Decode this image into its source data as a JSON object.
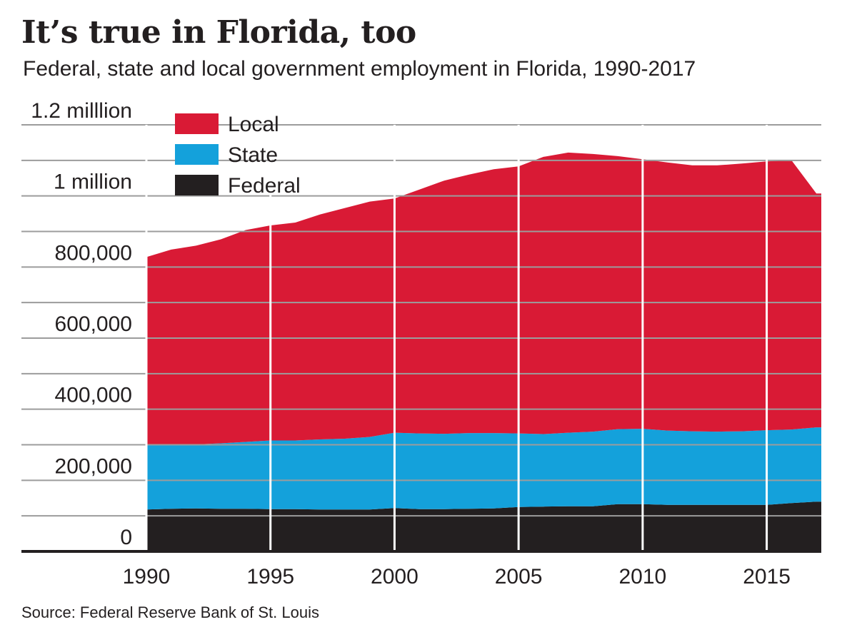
{
  "title": "It’s true in Florida, too",
  "subtitle": "Federal, state and local government employment in Florida, 1990-2017",
  "source": "Source: Federal Reserve Bank of St. Louis",
  "chart_data": {
    "type": "area",
    "stacked": true,
    "x": [
      1990,
      1991,
      1992,
      1993,
      1994,
      1995,
      1996,
      1997,
      1998,
      1999,
      2000,
      2001,
      2002,
      2003,
      2004,
      2005,
      2006,
      2007,
      2008,
      2009,
      2010,
      2011,
      2012,
      2013,
      2014,
      2015,
      2016,
      2017
    ],
    "series": [
      {
        "name": "Federal",
        "color": "#231f20",
        "values": [
          118000,
          120000,
          121000,
          120000,
          120000,
          119000,
          119000,
          118000,
          118000,
          118000,
          122000,
          119000,
          119000,
          120000,
          121000,
          125000,
          126000,
          127000,
          127000,
          133000,
          133000,
          131000,
          131000,
          131000,
          131000,
          131000,
          136000,
          140000
        ]
      },
      {
        "name": "State",
        "color": "#14a1db",
        "values": [
          182000,
          179000,
          180000,
          184000,
          188000,
          193000,
          193000,
          197000,
          199000,
          204000,
          212000,
          213000,
          212000,
          213000,
          212000,
          207000,
          204000,
          207000,
          210000,
          211000,
          212000,
          209000,
          207000,
          206000,
          207000,
          210000,
          207000,
          209000
        ]
      },
      {
        "name": "Local",
        "color": "#d91a35",
        "values": [
          528000,
          550000,
          559000,
          574000,
          596000,
          605000,
          613000,
          633000,
          649000,
          662000,
          659000,
          686000,
          712000,
          727000,
          742000,
          751000,
          780000,
          788000,
          781000,
          768000,
          758000,
          754000,
          748000,
          749000,
          753000,
          756000,
          757000,
          658000
        ]
      }
    ],
    "legend_order": [
      "Local",
      "State",
      "Federal"
    ],
    "legend_placement": "top-left",
    "y_ticks": [
      {
        "value": 0,
        "label": "0"
      },
      {
        "value": 200000,
        "label": "200,000"
      },
      {
        "value": 400000,
        "label": "400,000"
      },
      {
        "value": 600000,
        "label": "600,000"
      },
      {
        "value": 800000,
        "label": "800,000"
      },
      {
        "value": 1000000,
        "label": "1 million"
      },
      {
        "value": 1200000,
        "label": "1.2 milllion"
      }
    ],
    "x_ticks": [
      1990,
      1995,
      2000,
      2005,
      2010,
      2015
    ],
    "ylim": [
      0,
      1200000
    ],
    "xlim": [
      1990,
      2017.2
    ],
    "grid": true
  }
}
